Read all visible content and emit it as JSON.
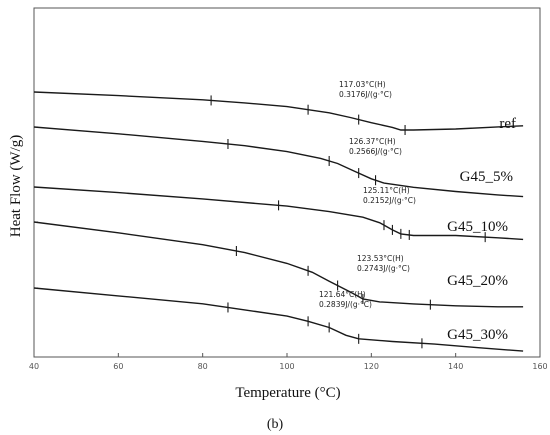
{
  "chart_data": {
    "type": "line",
    "xlabel": "Temperature (°C)",
    "ylabel": "Heat Flow (W/g)",
    "caption": "(b)",
    "xlim": [
      40,
      160
    ],
    "x_ticks": [
      40,
      60,
      80,
      100,
      120,
      140,
      160
    ],
    "grid": false,
    "legend": "none",
    "line_color": "#1a1a1a",
    "series": [
      {
        "name": "ref",
        "points": [
          [
            40,
            0.27
          ],
          [
            60,
            0.34
          ],
          [
            80,
            0.42
          ],
          [
            90,
            0.48
          ],
          [
            100,
            0.55
          ],
          [
            105,
            0.61
          ],
          [
            110,
            0.67
          ],
          [
            115,
            0.76
          ],
          [
            120,
            0.86
          ],
          [
            125,
            0.95
          ],
          [
            127,
            1.0
          ],
          [
            130,
            1.0
          ],
          [
            140,
            0.98
          ],
          [
            150,
            0.94
          ],
          [
            156,
            0.92
          ]
        ],
        "tick_marks_x": [
          82,
          105,
          117,
          128
        ],
        "annotation": [
          "117.03°C(H)",
          "0.3176J/(g·°C)"
        ]
      },
      {
        "name": "G45_5%",
        "points": [
          [
            40,
            0.27
          ],
          [
            60,
            0.35
          ],
          [
            80,
            0.44
          ],
          [
            90,
            0.49
          ],
          [
            100,
            0.56
          ],
          [
            108,
            0.64
          ],
          [
            112,
            0.7
          ],
          [
            116,
            0.79
          ],
          [
            120,
            0.88
          ],
          [
            123,
            0.93
          ],
          [
            130,
            0.98
          ],
          [
            140,
            1.03
          ],
          [
            150,
            1.07
          ],
          [
            156,
            1.09
          ]
        ],
        "tick_marks_x": [
          86,
          110,
          117,
          121
        ],
        "annotation": [
          "126.37°C(H)",
          "0.2566J/(g·°C)"
        ]
      },
      {
        "name": "G45_10%",
        "points": [
          [
            40,
            0.27
          ],
          [
            60,
            0.34
          ],
          [
            80,
            0.42
          ],
          [
            100,
            0.51
          ],
          [
            110,
            0.58
          ],
          [
            118,
            0.65
          ],
          [
            122,
            0.72
          ],
          [
            125,
            0.81
          ],
          [
            127,
            0.86
          ],
          [
            130,
            0.88
          ],
          [
            140,
            0.88
          ],
          [
            150,
            0.91
          ],
          [
            156,
            0.93
          ]
        ],
        "tick_marks_x": [
          98,
          123,
          125,
          127,
          129,
          147
        ],
        "annotation": [
          "125.11°C(H)",
          "0.2152J/(g·°C)"
        ]
      },
      {
        "name": "G45_20%",
        "points": [
          [
            40,
            0.27
          ],
          [
            60,
            0.38
          ],
          [
            80,
            0.5
          ],
          [
            90,
            0.58
          ],
          [
            100,
            0.69
          ],
          [
            106,
            0.78
          ],
          [
            110,
            0.87
          ],
          [
            115,
            0.98
          ],
          [
            118,
            1.05
          ],
          [
            122,
            1.08
          ],
          [
            130,
            1.1
          ],
          [
            140,
            1.12
          ],
          [
            150,
            1.13
          ],
          [
            156,
            1.13
          ]
        ],
        "tick_marks_x": [
          88,
          105,
          112,
          118,
          134
        ],
        "annotation": [
          "123.53°C(H)",
          "0.2743J/(g·°C)"
        ]
      },
      {
        "name": "G45_30%",
        "points": [
          [
            40,
            0.27
          ],
          [
            60,
            0.36
          ],
          [
            80,
            0.45
          ],
          [
            90,
            0.52
          ],
          [
            100,
            0.59
          ],
          [
            105,
            0.65
          ],
          [
            110,
            0.72
          ],
          [
            114,
            0.81
          ],
          [
            117,
            0.85
          ],
          [
            125,
            0.88
          ],
          [
            135,
            0.91
          ],
          [
            145,
            0.95
          ],
          [
            156,
            0.99
          ]
        ],
        "tick_marks_x": [
          86,
          105,
          110,
          117,
          132
        ],
        "annotation": [
          "121.64°C(H)",
          "0.2839J/(g·°C)"
        ]
      }
    ]
  }
}
